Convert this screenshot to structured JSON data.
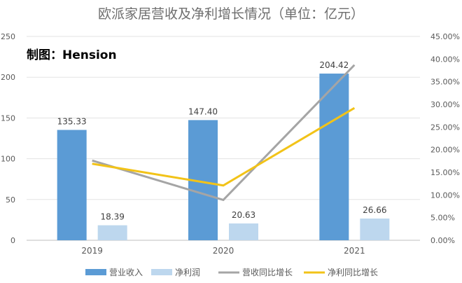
{
  "chart_data": {
    "type": "bar",
    "title": "欧派家居营收及净利增长情况（单位：亿元）",
    "annotation": "制图：Hension",
    "categories": [
      "2019",
      "2020",
      "2021"
    ],
    "series": [
      {
        "name": "营业收入",
        "kind": "bar",
        "axis": "left",
        "color": "#5b9bd5",
        "values": [
          135.33,
          147.4,
          204.42
        ],
        "labels": [
          "135.33",
          "147.40",
          "204.42"
        ]
      },
      {
        "name": "净利润",
        "kind": "bar",
        "axis": "left",
        "color": "#bdd7ee",
        "values": [
          18.39,
          20.63,
          26.66
        ],
        "labels": [
          "18.39",
          "20.63",
          "26.66"
        ]
      },
      {
        "name": "营收同比增长",
        "kind": "line",
        "axis": "right",
        "color": "#a5a5a5",
        "values": [
          0.176,
          0.089,
          0.387
        ]
      },
      {
        "name": "净利同比增长",
        "kind": "line",
        "axis": "right",
        "color": "#f2c318",
        "values": [
          0.169,
          0.121,
          0.292
        ]
      }
    ],
    "ylim_left": [
      0,
      250
    ],
    "yticks_left": [
      "0",
      "50",
      "100",
      "150",
      "200",
      "250"
    ],
    "ylim_right": [
      0,
      0.45
    ],
    "yticks_right": [
      "0.00%",
      "5.00%",
      "10.00%",
      "15.00%",
      "20.00%",
      "25.00%",
      "30.00%",
      "35.00%",
      "40.00%",
      "45.00%"
    ],
    "grid": true,
    "legend": "bottom"
  }
}
